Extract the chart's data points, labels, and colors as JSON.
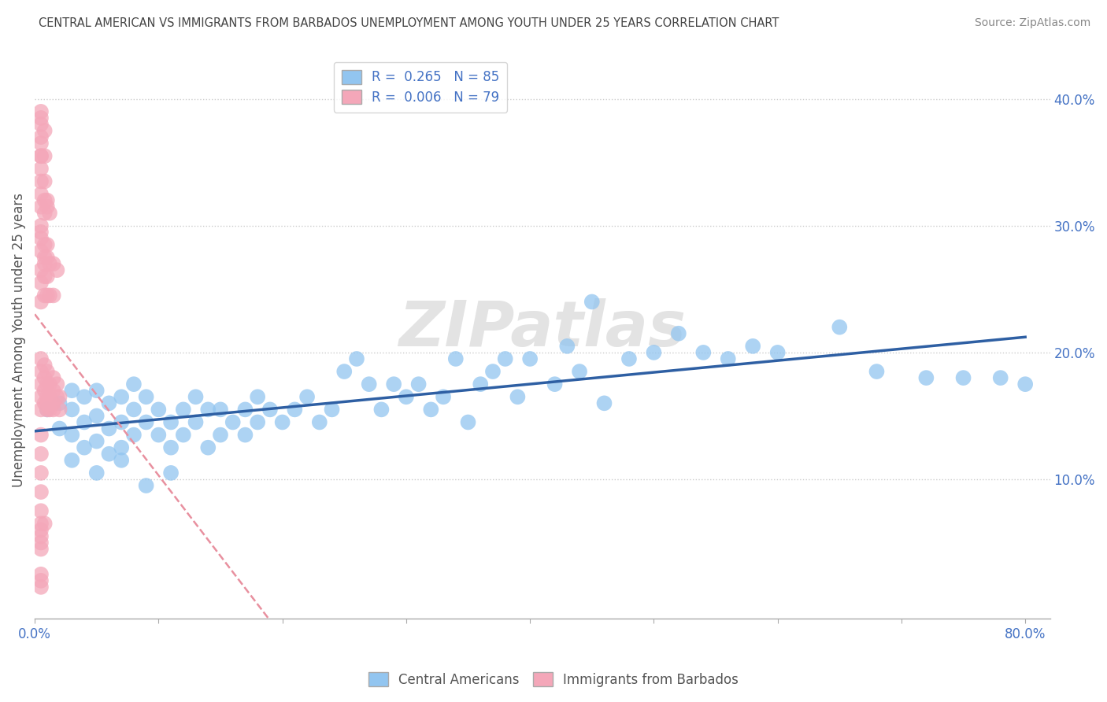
{
  "title": "CENTRAL AMERICAN VS IMMIGRANTS FROM BARBADOS UNEMPLOYMENT AMONG YOUTH UNDER 25 YEARS CORRELATION CHART",
  "source": "Source: ZipAtlas.com",
  "ylabel": "Unemployment Among Youth under 25 years",
  "xlim": [
    0.0,
    0.82
  ],
  "ylim": [
    -0.01,
    0.43
  ],
  "xticks": [
    0.0,
    0.1,
    0.2,
    0.3,
    0.4,
    0.5,
    0.6,
    0.7,
    0.8
  ],
  "xticklabels": [
    "0.0%",
    "",
    "",
    "",
    "",
    "",
    "",
    "",
    "80.0%"
  ],
  "ytick_positions": [
    0.1,
    0.2,
    0.3,
    0.4
  ],
  "ytick_labels": [
    "10.0%",
    "20.0%",
    "30.0%",
    "40.0%"
  ],
  "color_blue": "#92C5F0",
  "color_pink": "#F4A7B9",
  "color_blue_line": "#2E5FA3",
  "color_pink_line": "#E8909F",
  "watermark": "ZIPatlas",
  "blue_scatter_x": [
    0.01,
    0.02,
    0.02,
    0.03,
    0.03,
    0.03,
    0.04,
    0.04,
    0.04,
    0.05,
    0.05,
    0.05,
    0.06,
    0.06,
    0.06,
    0.07,
    0.07,
    0.07,
    0.08,
    0.08,
    0.08,
    0.09,
    0.09,
    0.1,
    0.1,
    0.11,
    0.11,
    0.12,
    0.12,
    0.13,
    0.13,
    0.14,
    0.14,
    0.15,
    0.15,
    0.16,
    0.17,
    0.17,
    0.18,
    0.18,
    0.19,
    0.2,
    0.21,
    0.22,
    0.23,
    0.24,
    0.25,
    0.26,
    0.27,
    0.28,
    0.29,
    0.3,
    0.31,
    0.32,
    0.33,
    0.34,
    0.35,
    0.36,
    0.37,
    0.38,
    0.39,
    0.4,
    0.42,
    0.43,
    0.44,
    0.45,
    0.46,
    0.48,
    0.5,
    0.52,
    0.54,
    0.56,
    0.58,
    0.6,
    0.65,
    0.68,
    0.72,
    0.75,
    0.78,
    0.8,
    0.03,
    0.05,
    0.07,
    0.09,
    0.11
  ],
  "blue_scatter_y": [
    0.155,
    0.14,
    0.16,
    0.135,
    0.155,
    0.17,
    0.125,
    0.145,
    0.165,
    0.13,
    0.15,
    0.17,
    0.12,
    0.14,
    0.16,
    0.125,
    0.145,
    0.165,
    0.135,
    0.155,
    0.175,
    0.145,
    0.165,
    0.135,
    0.155,
    0.125,
    0.145,
    0.135,
    0.155,
    0.145,
    0.165,
    0.125,
    0.155,
    0.135,
    0.155,
    0.145,
    0.135,
    0.155,
    0.145,
    0.165,
    0.155,
    0.145,
    0.155,
    0.165,
    0.145,
    0.155,
    0.185,
    0.195,
    0.175,
    0.155,
    0.175,
    0.165,
    0.175,
    0.155,
    0.165,
    0.195,
    0.145,
    0.175,
    0.185,
    0.195,
    0.165,
    0.195,
    0.175,
    0.205,
    0.185,
    0.24,
    0.16,
    0.195,
    0.2,
    0.215,
    0.2,
    0.195,
    0.205,
    0.2,
    0.22,
    0.185,
    0.18,
    0.18,
    0.18,
    0.175,
    0.115,
    0.105,
    0.115,
    0.095,
    0.105
  ],
  "pink_scatter_x": [
    0.005,
    0.005,
    0.005,
    0.005,
    0.005,
    0.008,
    0.008,
    0.008,
    0.008,
    0.01,
    0.01,
    0.01,
    0.01,
    0.01,
    0.012,
    0.012,
    0.012,
    0.015,
    0.015,
    0.015,
    0.015,
    0.018,
    0.018,
    0.02,
    0.02,
    0.005,
    0.005,
    0.005,
    0.008,
    0.008,
    0.01,
    0.01,
    0.012,
    0.015,
    0.005,
    0.005,
    0.005,
    0.005,
    0.008,
    0.008,
    0.008,
    0.01,
    0.01,
    0.012,
    0.015,
    0.018,
    0.005,
    0.005,
    0.008,
    0.008,
    0.01,
    0.012,
    0.005,
    0.005,
    0.005,
    0.008,
    0.01,
    0.005,
    0.005,
    0.005,
    0.008,
    0.005,
    0.005,
    0.005,
    0.008,
    0.005,
    0.005,
    0.005,
    0.005,
    0.005,
    0.005,
    0.008,
    0.005,
    0.005,
    0.005,
    0.005,
    0.005,
    0.005,
    0.005
  ],
  "pink_scatter_y": [
    0.155,
    0.165,
    0.175,
    0.185,
    0.195,
    0.16,
    0.17,
    0.18,
    0.19,
    0.155,
    0.165,
    0.175,
    0.185,
    0.16,
    0.165,
    0.175,
    0.155,
    0.16,
    0.17,
    0.18,
    0.155,
    0.165,
    0.175,
    0.165,
    0.155,
    0.24,
    0.255,
    0.265,
    0.245,
    0.26,
    0.245,
    0.26,
    0.245,
    0.245,
    0.28,
    0.29,
    0.3,
    0.295,
    0.275,
    0.285,
    0.27,
    0.275,
    0.285,
    0.27,
    0.27,
    0.265,
    0.315,
    0.325,
    0.31,
    0.32,
    0.315,
    0.31,
    0.335,
    0.345,
    0.355,
    0.335,
    0.32,
    0.355,
    0.365,
    0.37,
    0.355,
    0.38,
    0.385,
    0.39,
    0.375,
    0.135,
    0.12,
    0.09,
    0.075,
    0.06,
    0.05,
    0.065,
    0.045,
    0.105,
    0.055,
    0.065,
    0.025,
    0.02,
    0.015
  ]
}
